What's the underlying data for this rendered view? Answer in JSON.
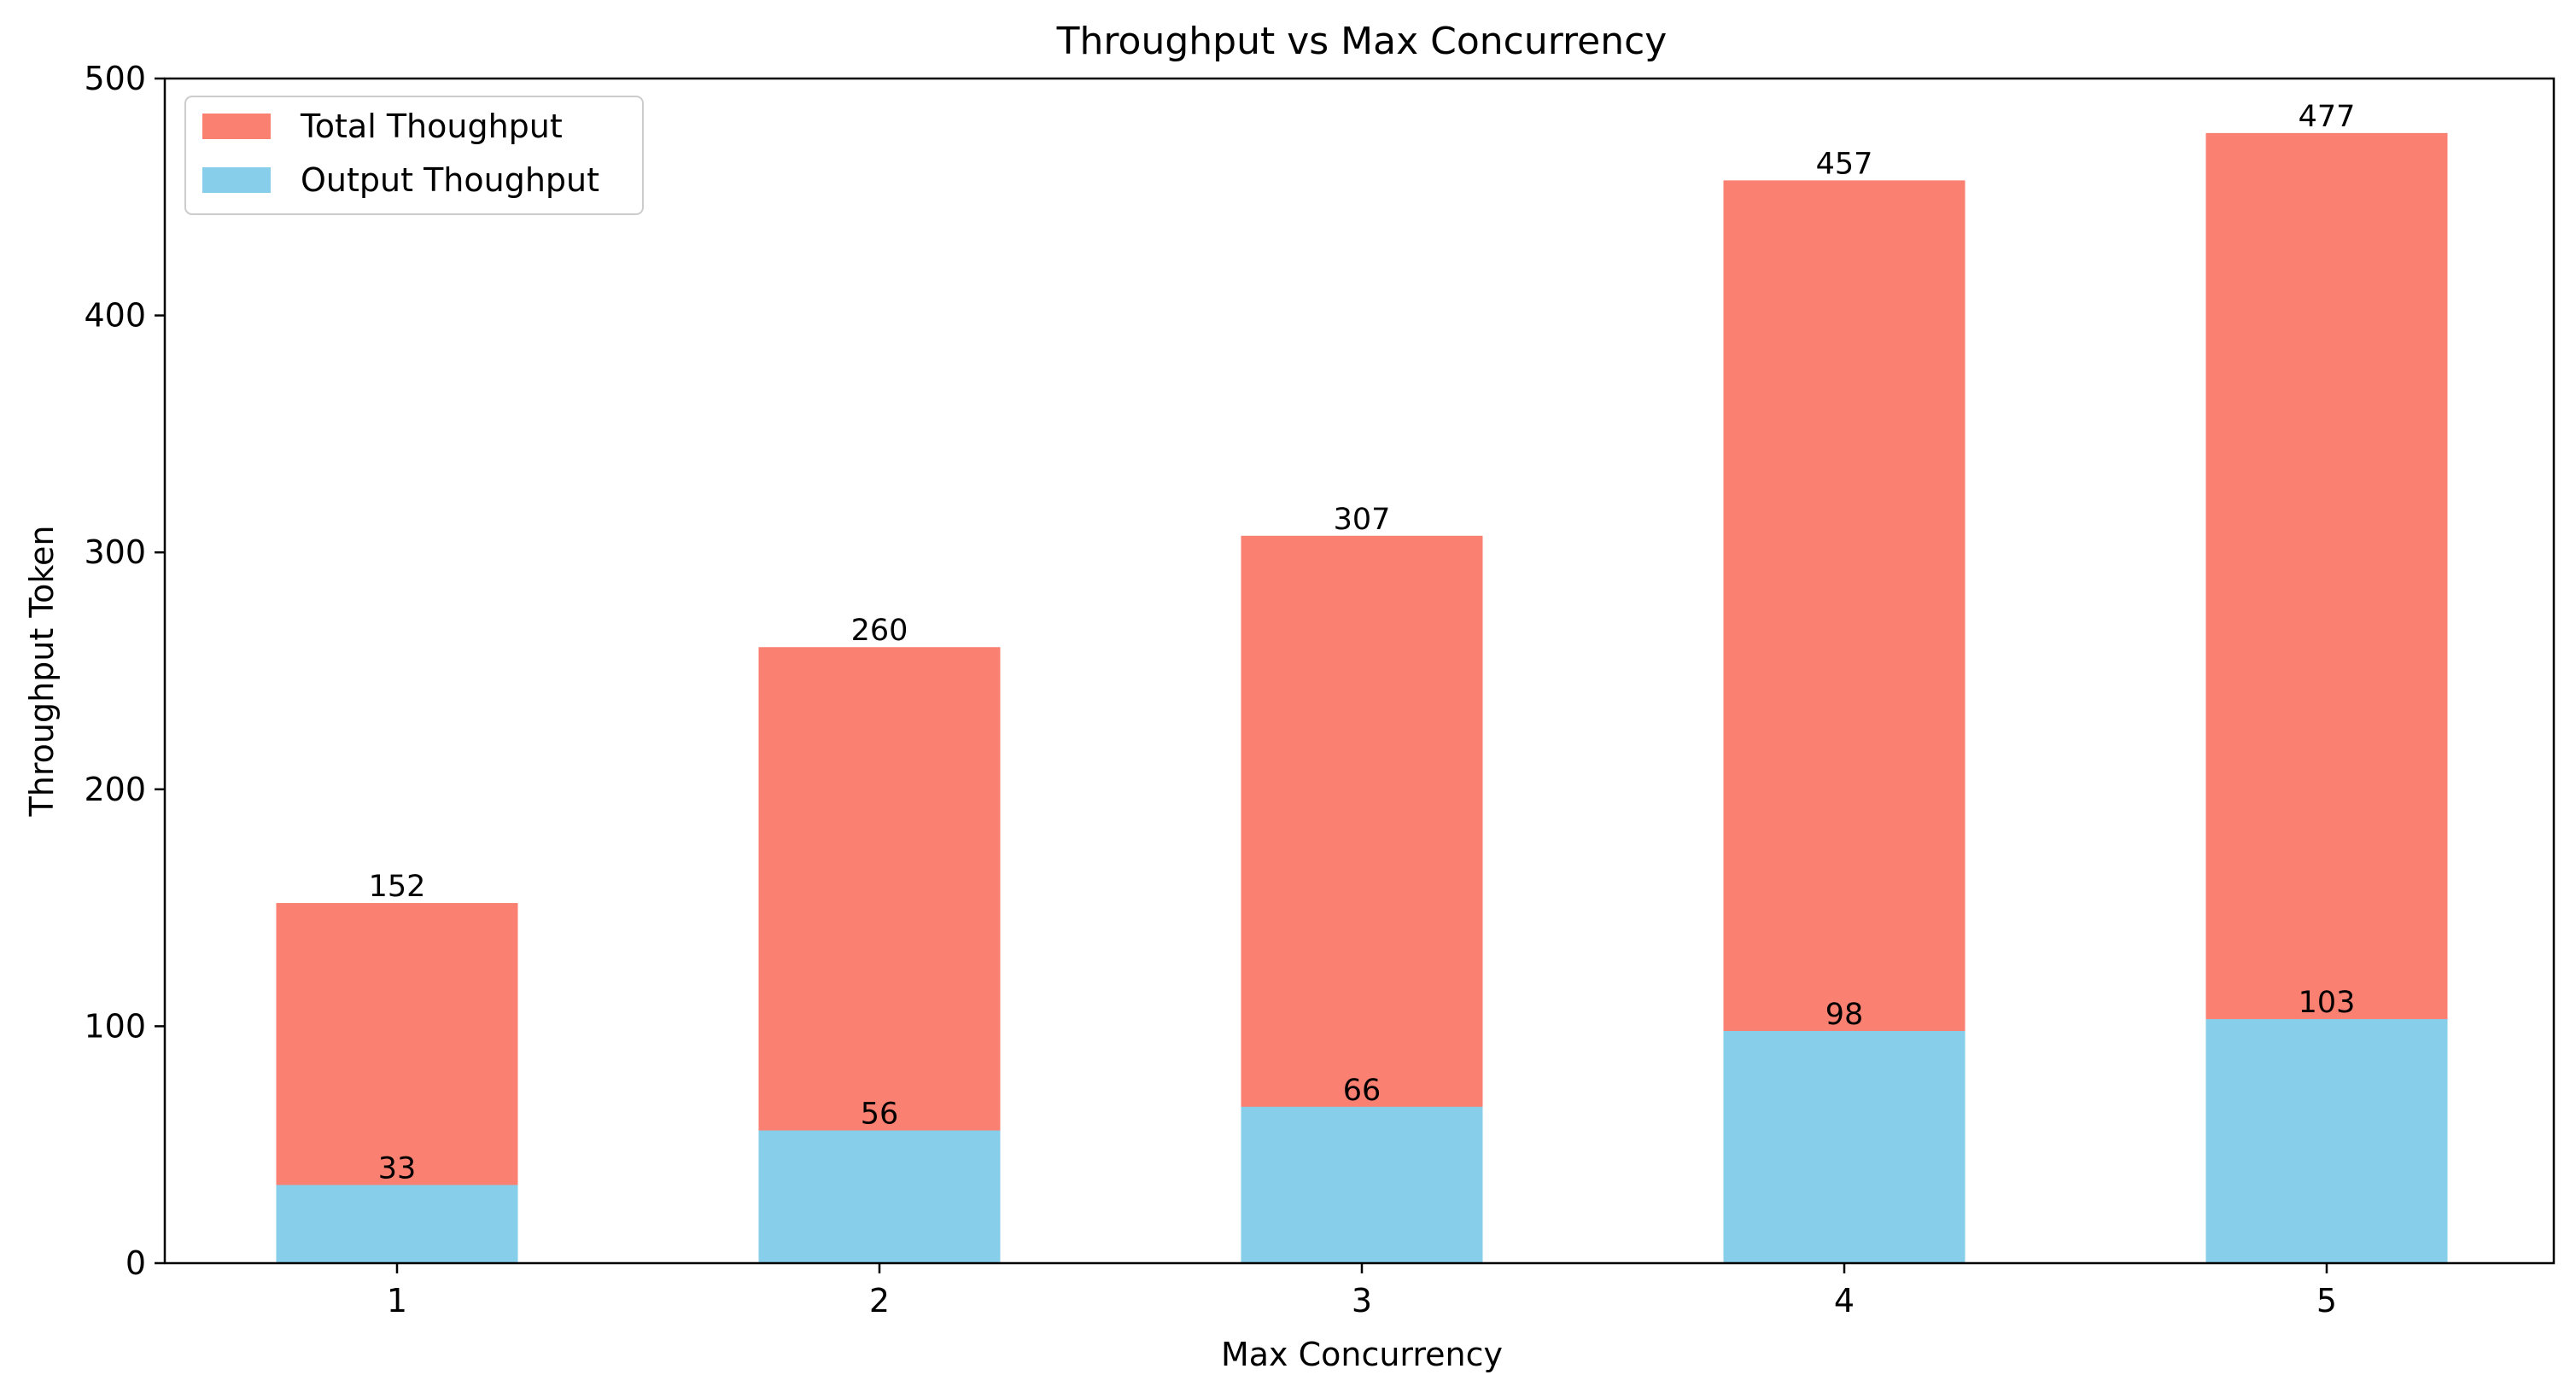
{
  "chart_data": {
    "type": "bar",
    "title": "Throughput vs Max Concurrency",
    "xlabel": "Max Concurrency",
    "ylabel": "Throughput Token",
    "categories": [
      "1",
      "2",
      "3",
      "4",
      "5"
    ],
    "ylim": [
      0,
      500
    ],
    "yticks": [
      0,
      100,
      200,
      300,
      400,
      500
    ],
    "grid": false,
    "legend_position": "top-left",
    "overlay": true,
    "series": [
      {
        "name": "Total Thoughput",
        "color": "#FA8072",
        "values": [
          152,
          260,
          307,
          457,
          477
        ]
      },
      {
        "name": "Output Thoughput",
        "color": "#87CEEB",
        "values": [
          33,
          56,
          66,
          98,
          103
        ]
      }
    ]
  }
}
